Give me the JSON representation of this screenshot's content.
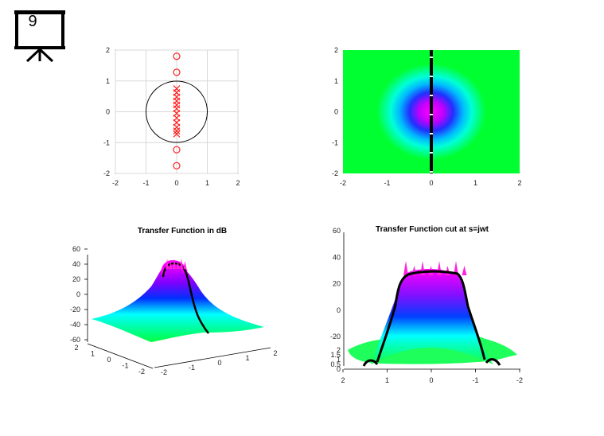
{
  "slide": {
    "number": "9"
  },
  "chart_data": [
    {
      "type": "scatter",
      "title": "",
      "xlim": [
        -2,
        2
      ],
      "ylim": [
        -2,
        2
      ],
      "xticks": [
        "-2",
        "-1",
        "0",
        "1",
        "2"
      ],
      "yticks": [
        "2",
        "1",
        "0",
        "-1",
        "-2"
      ],
      "grid": true,
      "unit_circle": true,
      "zeros": {
        "color": "#ff2020",
        "x": [
          0,
          0,
          0,
          0
        ],
        "y": [
          1.8,
          1.28,
          -1.23,
          -1.75
        ]
      },
      "poles": {
        "color": "#ff2020",
        "x": [
          0,
          0,
          0,
          0,
          0,
          0,
          0,
          0,
          0,
          0,
          0,
          0
        ],
        "y": [
          0.75,
          0.62,
          0.48,
          0.35,
          0.22,
          0.1,
          -0.05,
          -0.2,
          -0.35,
          -0.5,
          -0.62,
          -0.72
        ]
      }
    },
    {
      "type": "heatmap",
      "title": "",
      "xlim": [
        -2,
        2
      ],
      "ylim": [
        -2,
        2
      ],
      "xticks": [
        "-2",
        "-1",
        "0",
        "1",
        "2"
      ],
      "yticks": [
        "2",
        "1",
        "0",
        "-1",
        "-2"
      ],
      "colormap": [
        "#00ff00",
        "#00ffff",
        "#0000ff",
        "#ff00ff"
      ],
      "cut_line_x": 0
    },
    {
      "type": "surface",
      "title": "Transfer Function in dB",
      "zticks": [
        "60",
        "40",
        "20",
        "0",
        "-20",
        "-40",
        "-60"
      ],
      "yticks": [
        "2",
        "1",
        "0",
        "-1",
        "-2"
      ],
      "xticks": [
        "-2",
        "-1",
        "0",
        "1",
        "2"
      ]
    },
    {
      "type": "surface",
      "title": "Transfer Function cut at s=jwt",
      "zticks": [
        "60",
        "40",
        "20",
        "0",
        "-20"
      ],
      "yticks": [
        "2",
        "1.5",
        "1",
        "0.5",
        "0"
      ],
      "xticks": [
        "2",
        "1",
        "0",
        "-1",
        "-2"
      ]
    }
  ]
}
